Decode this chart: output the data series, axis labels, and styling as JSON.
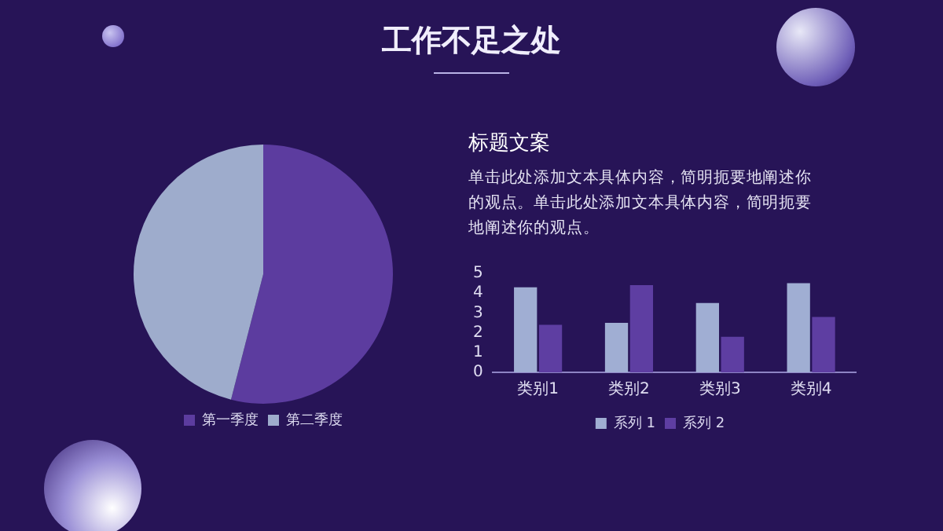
{
  "chart_data": [
    {
      "type": "other",
      "title": "工作不足之处"
    },
    {
      "type": "pie",
      "categories": [
        "第一季度",
        "第二季度"
      ],
      "values": [
        54,
        46
      ],
      "colors": [
        "#5c3c9f",
        "#9eaccc"
      ],
      "legend": "bottom"
    },
    {
      "type": "other",
      "title": "标题文案",
      "annotations": [
        "单击此处添加文本具体内容，简明扼要地阐述你的观点。单击此处添加文本具体内容，简明扼要地阐述你的观点。"
      ]
    },
    {
      "type": "bar",
      "categories": [
        "类别1",
        "类别2",
        "类别3",
        "类别4"
      ],
      "series": [
        {
          "name": "系列 1",
          "color": "#a0aed3",
          "values": [
            4.3,
            2.5,
            3.5,
            4.5
          ]
        },
        {
          "name": "系列 2",
          "color": "#5e3ea2",
          "values": [
            2.4,
            4.4,
            1.8,
            2.8
          ]
        }
      ],
      "ylim": [
        0,
        5
      ],
      "yticks": [
        0,
        1,
        2,
        3,
        4,
        5
      ],
      "legend": "bottom"
    }
  ]
}
